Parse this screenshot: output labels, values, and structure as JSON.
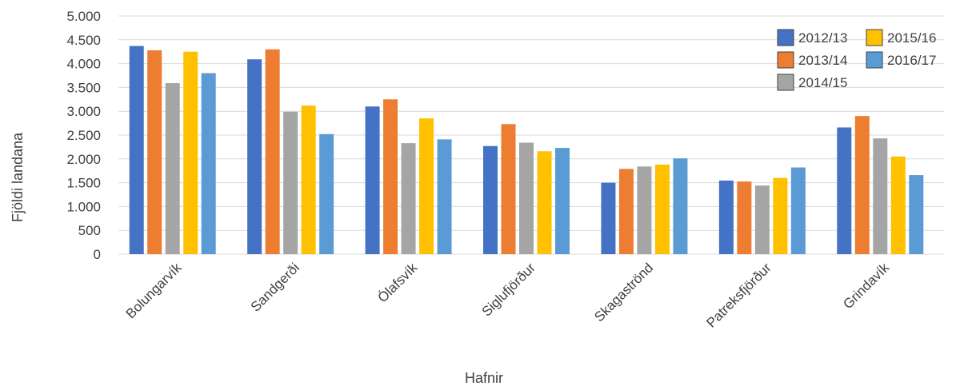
{
  "chart_data": {
    "type": "bar",
    "title": "",
    "xlabel": "Hafnir",
    "ylabel": "Fjöldi landana",
    "ylim": [
      0,
      5000
    ],
    "yticks": [
      0,
      500,
      1000,
      1500,
      2000,
      2500,
      3000,
      3500,
      4000,
      4500,
      5000
    ],
    "ytick_labels": [
      "0",
      "500",
      "1.000",
      "1.500",
      "2.000",
      "2.500",
      "3.000",
      "3.500",
      "4.000",
      "4.500",
      "5.000"
    ],
    "categories": [
      "Bolungarvík",
      "Sandgerði",
      "Ólafsvík",
      "Siglufjörður",
      "Skagaströnd",
      "Patreksfjörður",
      "Grindavík"
    ],
    "legend_position": "top-right",
    "grid": true,
    "series": [
      {
        "name": "2012/13",
        "color": "#4472c4",
        "values": [
          4370,
          4090,
          3100,
          2270,
          1500,
          1545,
          2660
        ]
      },
      {
        "name": "2013/14",
        "color": "#ed7d31",
        "values": [
          4280,
          4300,
          3250,
          2730,
          1790,
          1525,
          2900
        ]
      },
      {
        "name": "2014/15",
        "color": "#a5a5a5",
        "values": [
          3590,
          2990,
          2330,
          2340,
          1840,
          1440,
          2430
        ]
      },
      {
        "name": "2015/16",
        "color": "#ffc000",
        "values": [
          4250,
          3120,
          2850,
          2160,
          1880,
          1600,
          2050
        ]
      },
      {
        "name": "2016/17",
        "color": "#5b9bd5",
        "values": [
          3800,
          2520,
          2410,
          2230,
          2010,
          1820,
          1660
        ]
      }
    ]
  }
}
